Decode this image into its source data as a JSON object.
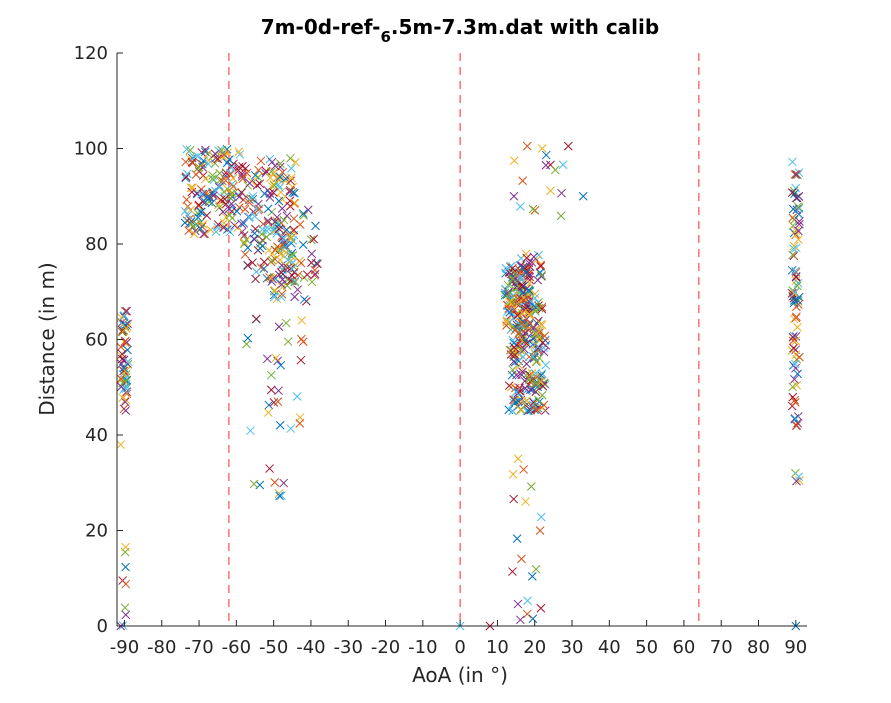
{
  "chart_data": {
    "type": "scatter",
    "title": "7m-0d-ref-",
    "title_subscript": "6",
    "title_rest": ".5m-7.3m.dat with calib",
    "xlabel": "AoA (in °)",
    "ylabel": "Distance (in m)",
    "xlim": [
      -92,
      93
    ],
    "ylim": [
      0,
      120
    ],
    "xticks": [
      -90,
      -80,
      -70,
      -60,
      -50,
      -40,
      -30,
      -20,
      -10,
      0,
      10,
      20,
      30,
      40,
      50,
      60,
      70,
      80,
      90
    ],
    "yticks": [
      0,
      20,
      40,
      60,
      80,
      100,
      120
    ],
    "grid": false,
    "marker": "x",
    "reference_lines_x": [
      -62,
      0,
      64
    ],
    "reference_line_color": "#ff4d4d",
    "palette": [
      "#0072bd",
      "#d95319",
      "#edb120",
      "#7e2f8e",
      "#77ac30",
      "#4dbeee",
      "#a2142f"
    ],
    "clusters": [
      {
        "x": [
          -91,
          -89
        ],
        "y": [
          45,
          66
        ],
        "n": 60
      },
      {
        "x": [
          -91,
          -89
        ],
        "y": [
          0,
          18
        ],
        "n": 8
      },
      {
        "x": [
          -74,
          -58
        ],
        "y": [
          82,
          100
        ],
        "n": 160
      },
      {
        "x": [
          -58,
          -44
        ],
        "y": [
          72,
          98
        ],
        "n": 160
      },
      {
        "x": [
          -50,
          -38
        ],
        "y": [
          68,
          88
        ],
        "n": 60
      },
      {
        "x": [
          -58,
          -42
        ],
        "y": [
          40,
          65
        ],
        "n": 28
      },
      {
        "x": [
          -56,
          -44
        ],
        "y": [
          22,
          34
        ],
        "n": 8
      },
      {
        "x": [
          12,
          19
        ],
        "y": [
          62,
          76
        ],
        "n": 130
      },
      {
        "x": [
          16,
          22
        ],
        "y": [
          60,
          78
        ],
        "n": 70
      },
      {
        "x": [
          13,
          23
        ],
        "y": [
          45,
          62
        ],
        "n": 150
      },
      {
        "x": [
          14,
          28
        ],
        "y": [
          80,
          100
        ],
        "n": 12
      },
      {
        "x": [
          13,
          22
        ],
        "y": [
          0,
          37
        ],
        "n": 18
      },
      {
        "x": [
          89,
          91
        ],
        "y": [
          41,
          98
        ],
        "n": 90
      },
      {
        "x": [
          89,
          91
        ],
        "y": [
          30,
          32
        ],
        "n": 4
      }
    ],
    "points": [
      {
        "x": 29,
        "y": 100.5
      },
      {
        "x": 33,
        "y": 90
      },
      {
        "x": 18,
        "y": 100.5
      },
      {
        "x": 22,
        "y": 100
      },
      {
        "x": 23,
        "y": 96.5
      },
      {
        "x": 25.5,
        "y": 95.5
      },
      {
        "x": 0,
        "y": 0
      },
      {
        "x": 8,
        "y": 0
      },
      {
        "x": 90,
        "y": 0
      },
      {
        "x": 18,
        "y": 2.5
      },
      {
        "x": -91,
        "y": 38
      },
      {
        "x": -91,
        "y": 0
      }
    ]
  }
}
